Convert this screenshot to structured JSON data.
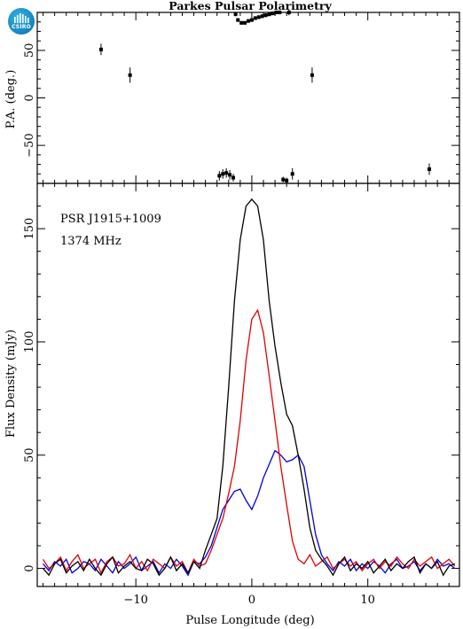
{
  "logo": {
    "text": "CSIRO",
    "icon": "csiro-logo"
  },
  "chart_data": [
    {
      "type": "scatter",
      "title": "Parkes Pulsar Polarimetry",
      "xlabel": "",
      "ylabel": "P.A. (deg.)",
      "xlim": [
        -18.5,
        17.9
      ],
      "ylim": [
        -90,
        90
      ],
      "yticks": [
        -50,
        0,
        50
      ],
      "xticks": [
        -10,
        0,
        10
      ],
      "series": [
        {
          "x": [
            -13,
            -10.5,
            -2.8,
            -2.5,
            -2.2,
            -1.9,
            -1.6,
            -1.4,
            -1.2,
            -0.9,
            -0.6,
            -0.3,
            0.0,
            0.3,
            0.6,
            0.9,
            1.2,
            1.5,
            1.8,
            2.1,
            2.4,
            2.7,
            3.0,
            3.2,
            3.5,
            5.2,
            15.3
          ],
          "y": [
            51,
            24,
            -82,
            -80,
            -79,
            -81,
            -84,
            88,
            82,
            79,
            79,
            81,
            82,
            84,
            85,
            86,
            87,
            88,
            89,
            90,
            90,
            -86,
            -87,
            90,
            -80,
            24,
            -75
          ],
          "err": [
            6,
            8,
            5,
            5,
            5,
            5,
            4,
            2,
            2,
            2,
            2,
            2,
            2,
            2,
            2,
            2,
            2,
            2,
            2,
            2,
            2,
            3,
            3,
            3,
            6,
            8,
            6
          ]
        }
      ]
    },
    {
      "type": "line",
      "xlabel": "Pulse Longitude (deg)",
      "ylabel": "Flux Density (mJy)",
      "xlim": [
        -18.5,
        17.9
      ],
      "ylim": [
        -8,
        170
      ],
      "xticks": [
        -10,
        0,
        10
      ],
      "yticks": [
        0,
        50,
        100,
        150
      ],
      "annotations": [
        "PSR J1915+1009",
        "1374 MHz"
      ],
      "x": [
        -18.0,
        -17.5,
        -17.0,
        -16.5,
        -16.0,
        -15.5,
        -15.0,
        -14.5,
        -14.0,
        -13.5,
        -13.0,
        -12.5,
        -12.0,
        -11.5,
        -11.0,
        -10.5,
        -10.0,
        -9.5,
        -9.0,
        -8.5,
        -8.0,
        -7.5,
        -7.0,
        -6.5,
        -6.0,
        -5.5,
        -5.0,
        -4.5,
        -4.0,
        -3.5,
        -3.0,
        -2.5,
        -2.0,
        -1.5,
        -1.0,
        -0.5,
        0.0,
        0.5,
        1.0,
        1.5,
        2.0,
        2.5,
        3.0,
        3.5,
        4.0,
        4.5,
        5.0,
        5.5,
        6.0,
        6.5,
        7.0,
        7.5,
        8.0,
        8.5,
        9.0,
        9.5,
        10.0,
        10.5,
        11.0,
        11.5,
        12.0,
        12.5,
        13.0,
        13.5,
        14.0,
        14.5,
        15.0,
        15.5,
        16.0,
        16.5,
        17.0,
        17.5
      ],
      "series": [
        {
          "name": "",
          "color": "#000000",
          "values": [
            0,
            -3,
            2,
            4,
            -2,
            1,
            3,
            -1,
            4,
            0,
            -3,
            2,
            5,
            -2,
            1,
            3,
            0,
            -1,
            4,
            2,
            -3,
            0,
            5,
            -1,
            2,
            -2,
            3,
            0,
            8,
            15,
            22,
            45,
            80,
            118,
            145,
            160,
            163,
            160,
            145,
            118,
            98,
            82,
            68,
            63,
            50,
            35,
            18,
            8,
            4,
            1,
            -3,
            2,
            5,
            -1,
            2,
            0,
            3,
            -2,
            1,
            4,
            -1,
            2,
            0,
            3,
            5,
            -2,
            2,
            0,
            3,
            -3,
            1,
            2
          ]
        },
        {
          "name": "",
          "color": "#e00000",
          "values": [
            4,
            0,
            2,
            5,
            -1,
            3,
            6,
            0,
            2,
            4,
            -2,
            3,
            5,
            1,
            2,
            6,
            0,
            3,
            -1,
            4,
            2,
            0,
            5,
            1,
            3,
            -2,
            4,
            1,
            2,
            8,
            15,
            22,
            33,
            45,
            65,
            92,
            110,
            114,
            104,
            85,
            65,
            45,
            28,
            12,
            4,
            2,
            6,
            1,
            3,
            5,
            0,
            2,
            4,
            1,
            3,
            -1,
            2,
            4,
            0,
            3,
            1,
            5,
            2,
            0,
            4,
            1,
            3,
            5,
            0,
            2,
            4,
            1
          ]
        },
        {
          "name": "",
          "color": "#0000e0",
          "values": [
            2,
            -1,
            3,
            1,
            4,
            -2,
            0,
            3,
            2,
            -1,
            4,
            1,
            -2,
            3,
            0,
            2,
            5,
            -1,
            1,
            3,
            -2,
            2,
            0,
            4,
            1,
            -3,
            3,
            2,
            5,
            10,
            18,
            26,
            30,
            34,
            35,
            30,
            26,
            32,
            40,
            46,
            52,
            50,
            47,
            48,
            50,
            45,
            30,
            15,
            6,
            2,
            -1,
            3,
            1,
            4,
            -1,
            2,
            0,
            3,
            1,
            -2,
            2,
            4,
            0,
            1,
            3,
            -1,
            2,
            0,
            4,
            1,
            2,
            0
          ]
        }
      ]
    }
  ]
}
